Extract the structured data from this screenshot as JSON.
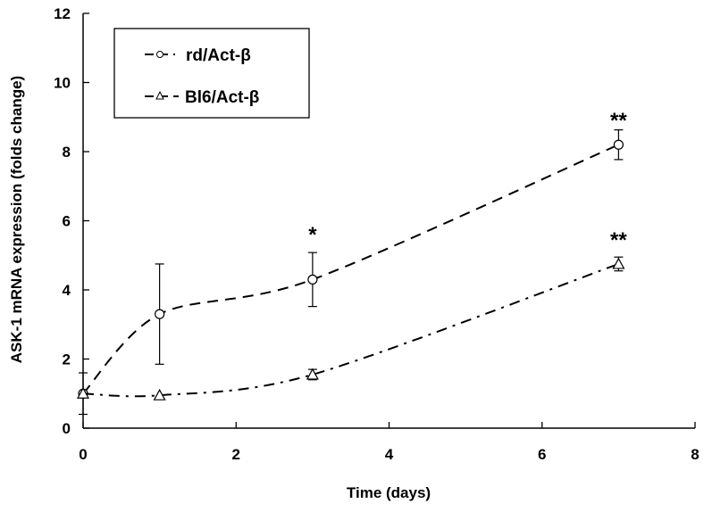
{
  "chart_data": {
    "type": "line",
    "title": "",
    "xlabel": "Time (days)",
    "ylabel": "ASK-1 mRNA expression (folds change)",
    "xlim": [
      0,
      8
    ],
    "ylim": [
      0,
      12
    ],
    "xticks": [
      0,
      2,
      4,
      6,
      8
    ],
    "yticks": [
      0,
      2,
      4,
      6,
      8,
      10,
      12
    ],
    "grid": false,
    "legend_placement": "top-left",
    "series": [
      {
        "name": "rd/Act-β",
        "marker": "circle",
        "line": "dashed",
        "x": [
          0,
          1,
          3,
          7
        ],
        "y": [
          1,
          3.3,
          4.3,
          8.2
        ],
        "err": [
          0.6,
          1.45,
          0.78,
          0.43
        ]
      },
      {
        "name": "Bl6/Act-β",
        "marker": "triangle",
        "line": "dash-dot",
        "x": [
          0,
          1,
          3,
          7
        ],
        "y": [
          1,
          0.95,
          1.55,
          4.75
        ],
        "err": [
          0.05,
          0.05,
          0.15,
          0.2
        ]
      }
    ],
    "annotations": [
      {
        "x": 3,
        "y": 5.6,
        "text": "*"
      },
      {
        "x": 7,
        "y": 8.9,
        "text": "**"
      },
      {
        "x": 7,
        "y": 5.45,
        "text": "**"
      }
    ]
  }
}
